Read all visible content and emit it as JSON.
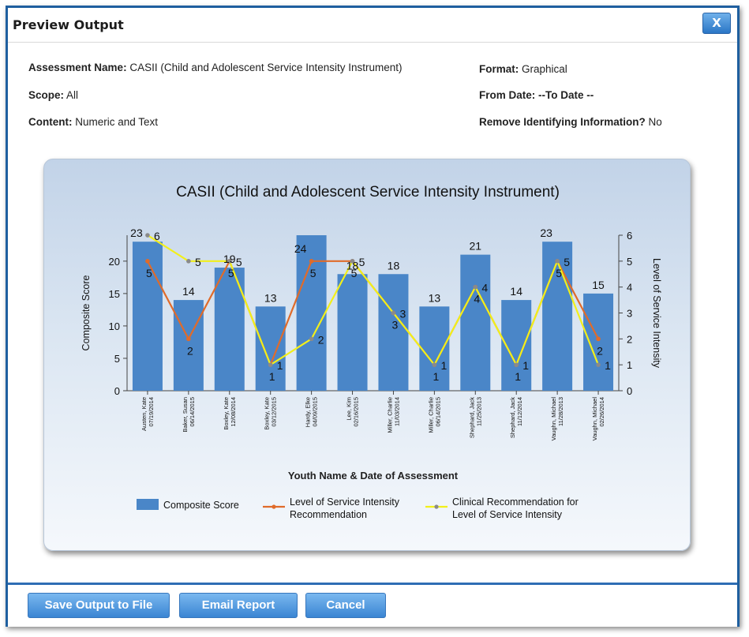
{
  "dialog": {
    "title": "Preview Output",
    "close_label": "X"
  },
  "meta": {
    "assessment_name_label": "Assessment Name:",
    "assessment_name_value": "CASII (Child and Adolescent Service Intensity Instrument)",
    "scope_label": "Scope:",
    "scope_value": "All",
    "content_label": "Content:",
    "content_value": "Numeric and Text",
    "format_label": "Format:",
    "format_value": "Graphical",
    "date_label": "From Date:",
    "date_value": "--To Date --",
    "remove_label": "Remove Identifying Information?",
    "remove_value": "No"
  },
  "chart_data": {
    "type": "bar",
    "title": "CASII (Child and Adolescent Service Intensity Instrument)",
    "xlabel": "Youth Name & Date of Assessment",
    "ylabel": "Composite Score",
    "y2label": "Level of Service Intensity",
    "ylim": [
      0,
      24
    ],
    "y_ticks": [
      0,
      5,
      10,
      15,
      20
    ],
    "y2lim": [
      0,
      6
    ],
    "y2_ticks": [
      0,
      1,
      2,
      3,
      4,
      5,
      6
    ],
    "categories": [
      [
        "Austen, Kate",
        "07/19/2014"
      ],
      [
        "Baker, Susan",
        "06/14/2015"
      ],
      [
        "Boxley, Kate",
        "12/08/2014"
      ],
      [
        "Boxley, Kate",
        "03/12/2015"
      ],
      [
        "Hardy, Elke",
        "04/09/2015"
      ],
      [
        "Lee, Kim",
        "02/16/2015"
      ],
      [
        "Miller, Charlie",
        "11/03/2014"
      ],
      [
        "Miller, Charlie",
        "06/14/2015"
      ],
      [
        "Shephard, Jack",
        "11/25/2013"
      ],
      [
        "Shephard, Jack",
        "11/12/2014"
      ],
      [
        "Vaughn, Michael",
        "11/28/2013"
      ],
      [
        "Vaughn, Michael",
        "02/26/2014"
      ]
    ],
    "series": [
      {
        "name": "Composite Score",
        "kind": "bar",
        "axis": "left",
        "color": "#4a86c8",
        "values": [
          23,
          14,
          19,
          13,
          24,
          18,
          18,
          13,
          21,
          14,
          23,
          15
        ]
      },
      {
        "name": "Level of Service Intensity Recommendation",
        "kind": "line",
        "axis": "right",
        "color": "#e06b2a",
        "values": [
          5,
          2,
          5,
          1,
          5,
          5,
          3,
          1,
          4,
          1,
          5,
          2
        ]
      },
      {
        "name": "Clinical Recommendation for Level of Service Intensity",
        "kind": "line",
        "axis": "right",
        "color": "#f2ef1a",
        "values": [
          6,
          5,
          5,
          1,
          2,
          5,
          3,
          1,
          4,
          1,
          5,
          1
        ]
      }
    ],
    "legend": [
      "Composite Score",
      "Level of Service Intensity Recommendation",
      "Clinical Recommendation for Level of Service Intensity"
    ],
    "legend_position": "bottom"
  },
  "footer": {
    "save_label": "Save Output to File",
    "email_label": "Email Report",
    "cancel_label": "Cancel"
  }
}
